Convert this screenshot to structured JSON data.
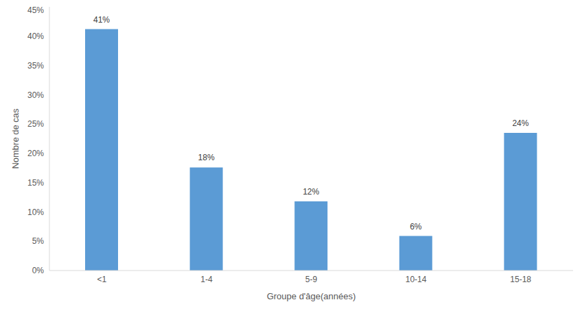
{
  "chart_data": {
    "type": "bar",
    "x_label": "Groupe d'âge(années)",
    "y_label": "Nombre de cas",
    "categories": [
      "<1",
      "1-4",
      "5-9",
      "10-14",
      "15-18"
    ],
    "values": [
      41.2,
      17.6,
      11.8,
      5.9,
      23.5
    ],
    "value_labels": [
      "41%",
      "18%",
      "12%",
      "6%",
      "24%"
    ],
    "color": "#5b9bd5",
    "ylim": [
      0,
      45
    ],
    "yticks": [
      {
        "value": 0,
        "label": "0%"
      },
      {
        "value": 5,
        "label": "5%"
      },
      {
        "value": 10,
        "label": "10%"
      },
      {
        "value": 15,
        "label": "15%"
      },
      {
        "value": 20,
        "label": "20%"
      },
      {
        "value": 25,
        "label": "25%"
      },
      {
        "value": 30,
        "label": "30%"
      },
      {
        "value": 35,
        "label": "35%"
      },
      {
        "value": 40,
        "label": "40%"
      },
      {
        "value": 45,
        "label": "45%"
      }
    ],
    "grid": false,
    "data_labels": true
  }
}
